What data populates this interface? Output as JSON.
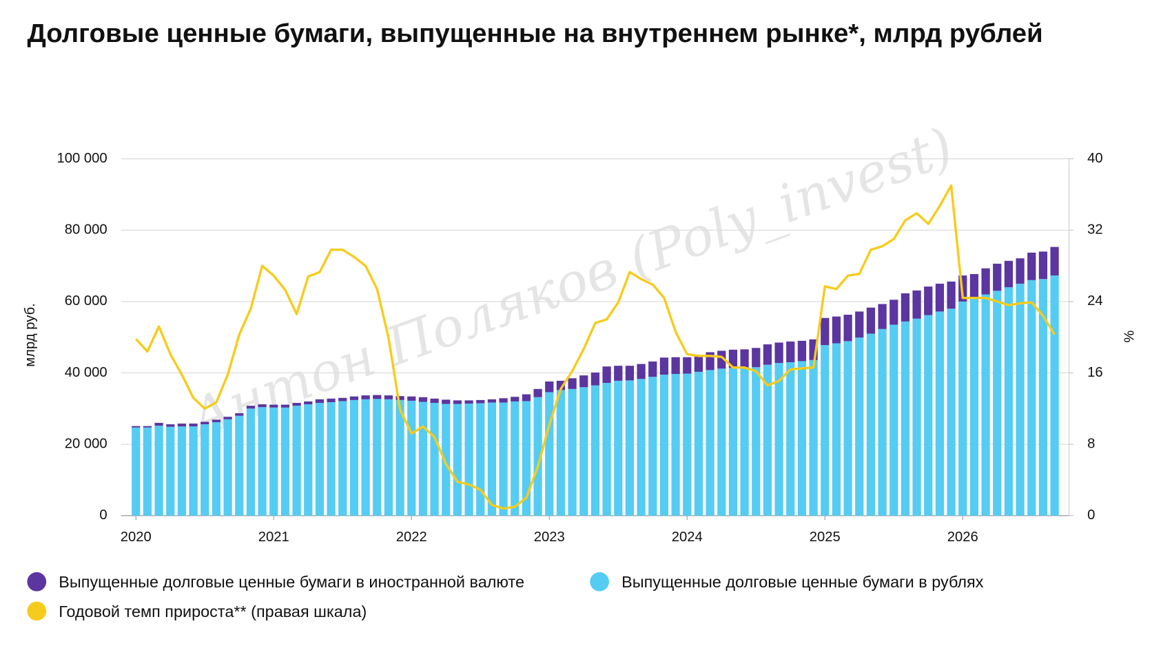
{
  "chart_data": {
    "type": "bar",
    "title": "Долговые ценные бумаги, выпущенные на внутреннем рынке*, млрд рублей",
    "watermark": "Антон Поляков (Poly_invest)",
    "y_label": "млрд руб.",
    "y2_label": "%",
    "stacked": true,
    "grid": true,
    "categories": [
      "2020",
      null,
      null,
      null,
      null,
      null,
      null,
      null,
      null,
      null,
      null,
      null,
      "2021",
      null,
      null,
      null,
      null,
      null,
      null,
      null,
      null,
      null,
      null,
      null,
      "2022",
      null,
      null,
      null,
      null,
      null,
      null,
      null,
      null,
      null,
      null,
      null,
      "2023",
      null,
      null,
      null,
      null,
      null,
      null,
      null,
      null,
      null,
      null,
      null,
      "2024",
      null,
      null,
      null,
      null,
      null,
      null,
      null,
      null,
      null,
      null,
      null,
      "2025",
      null,
      null,
      null,
      null,
      null,
      null,
      null,
      null,
      null,
      null,
      null,
      "2026",
      null,
      null,
      null,
      null,
      null,
      null,
      null,
      null
    ],
    "ylim": [
      0,
      100000
    ],
    "yticks": [
      0,
      {
        "value": 20000,
        "label": "20 000"
      },
      {
        "value": 40000,
        "label": "40 000"
      },
      {
        "value": 60000,
        "label": "60 000"
      },
      {
        "value": 80000,
        "label": "80 000"
      },
      {
        "value": 100000,
        "label": "100 000"
      }
    ],
    "y2lim": [
      0,
      40
    ],
    "y2ticks": [
      0,
      8,
      16,
      24,
      32,
      40
    ],
    "series": [
      {
        "name": "Выпущенные долговые ценные бумаги в иностранной валюте",
        "type": "bar",
        "color": "#5b35a0",
        "values": [
          400,
          400,
          800,
          700,
          800,
          800,
          700,
          700,
          700,
          700,
          800,
          800,
          800,
          800,
          800,
          800,
          1000,
          1000,
          900,
          1000,
          1100,
          1100,
          1100,
          1100,
          1200,
          1300,
          1200,
          1200,
          1000,
          900,
          900,
          900,
          1200,
          1300,
          1900,
          2300,
          3000,
          2600,
          3000,
          3300,
          3600,
          4600,
          4200,
          4100,
          4200,
          4300,
          4800,
          4700,
          4600,
          4300,
          5000,
          5000,
          5100,
          5100,
          5400,
          5700,
          5700,
          5800,
          5700,
          5800,
          7600,
          7500,
          7400,
          7300,
          7300,
          7000,
          7000,
          7900,
          7900,
          8000,
          7800,
          7600,
          7300,
          6700,
          7300,
          7600,
          7400,
          7100,
          7700,
          7700,
          8000
        ]
      },
      {
        "name": "Выпущенные долговые ценные бумаги в рублях",
        "type": "bar",
        "color": "#55ccf3",
        "values": [
          24700,
          24700,
          25200,
          24900,
          25000,
          25000,
          25600,
          26200,
          27000,
          28000,
          30000,
          30400,
          30300,
          30300,
          30800,
          31200,
          31600,
          31800,
          32100,
          32400,
          32600,
          32700,
          32600,
          32400,
          32200,
          31900,
          31600,
          31300,
          31300,
          31400,
          31500,
          31700,
          31700,
          32000,
          32100,
          33200,
          34600,
          35200,
          35500,
          36000,
          36500,
          37200,
          37800,
          37900,
          38300,
          38900,
          39500,
          39700,
          39800,
          40300,
          40800,
          41200,
          41400,
          41500,
          41600,
          42300,
          42800,
          43000,
          43300,
          43600,
          47800,
          48300,
          48900,
          49900,
          51000,
          52300,
          53500,
          54400,
          55200,
          56200,
          57200,
          58000,
          60000,
          61000,
          62000,
          63000,
          64000,
          65000,
          66000,
          66300,
          67300
        ]
      },
      {
        "name": "Годовой темп прироста** (правая шкала)",
        "type": "line",
        "axis": "y2",
        "color": "#f5cc1c",
        "values": [
          19.8,
          18.4,
          21.2,
          18.1,
          15.8,
          13.2,
          12.0,
          12.7,
          15.8,
          20.3,
          23.2,
          28.0,
          26.9,
          25.3,
          22.6,
          26.8,
          27.3,
          29.8,
          29.8,
          29.0,
          28.0,
          25.4,
          19.9,
          11.9,
          9.2,
          10.0,
          8.8,
          5.8,
          3.8,
          3.5,
          2.9,
          1.2,
          0.8,
          1.0,
          2.0,
          5.5,
          10.2,
          14.2,
          16.2,
          18.7,
          21.6,
          22.0,
          23.9,
          27.3,
          26.5,
          25.9,
          24.4,
          20.6,
          18.1,
          17.9,
          17.9,
          17.8,
          16.6,
          16.6,
          16.2,
          14.6,
          15.1,
          16.4,
          16.5,
          16.6,
          25.7,
          25.4,
          26.9,
          27.1,
          29.8,
          30.2,
          31.0,
          33.1,
          33.9,
          32.7,
          34.7,
          37.0,
          24.4,
          24.4,
          24.4,
          24.0,
          23.6,
          23.8,
          23.9,
          22.4,
          20.3
        ]
      }
    ]
  }
}
